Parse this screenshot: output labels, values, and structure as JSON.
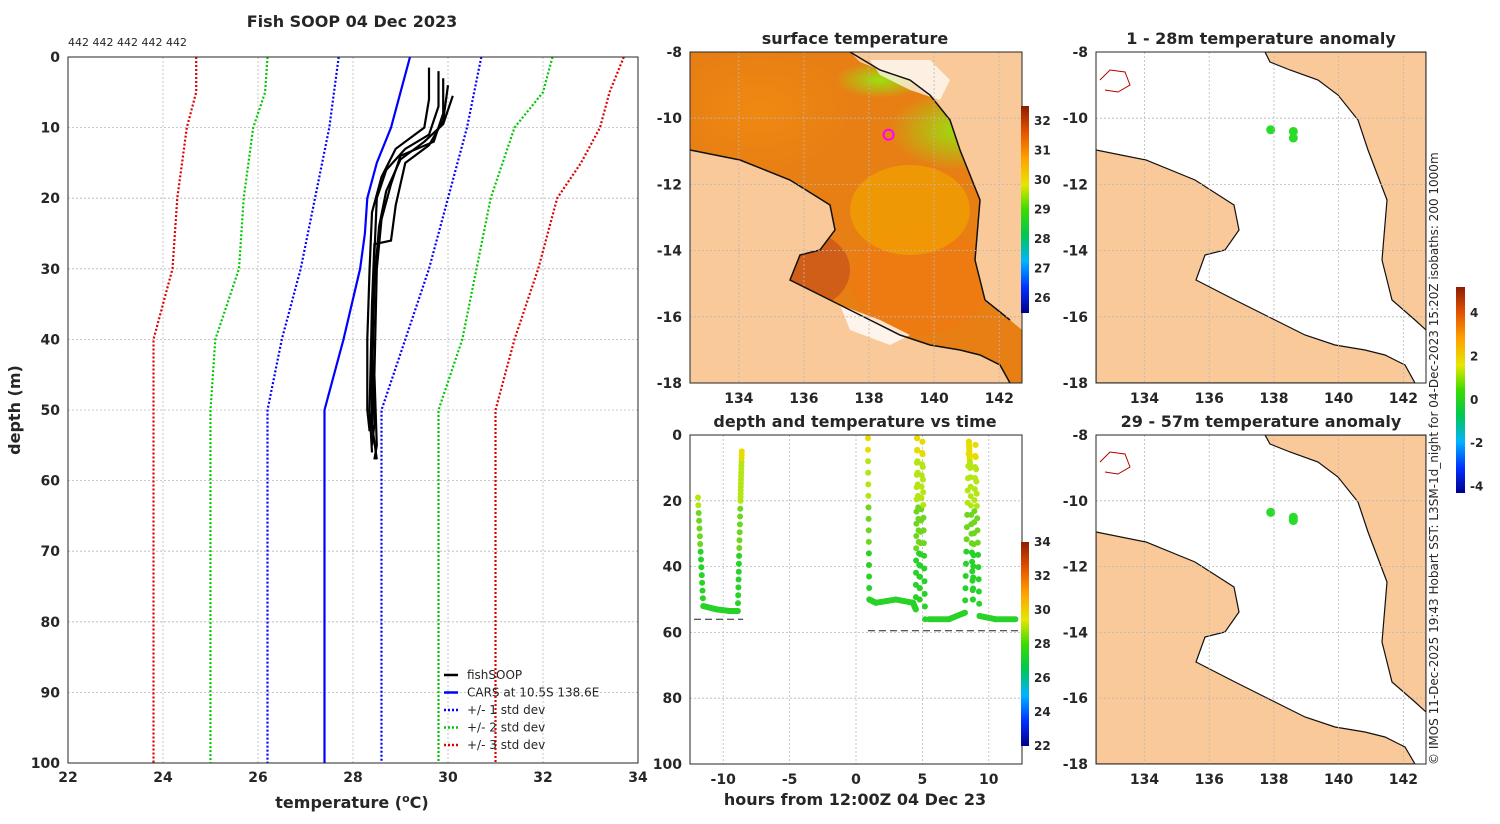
{
  "colors": {
    "land": "#f9c99a",
    "profile": "#000000",
    "cars": "#0000ff",
    "std1": "#0000ff",
    "std2": "#00c800",
    "std3": "#e00000",
    "marker": "#ff00ff"
  },
  "chart_data": [
    {
      "type": "line",
      "title": "Fish SOOP 04 Dec 2023",
      "annotation": "442 442 442 442 442",
      "xlabel": "temperature (oC)",
      "ylabel": "depth (m)",
      "xlim": [
        22,
        34
      ],
      "ylim": [
        100,
        0
      ],
      "xticks": [
        "22",
        "24",
        "26",
        "28",
        "30",
        "32",
        "34"
      ],
      "yticks": [
        "0",
        "10",
        "20",
        "30",
        "40",
        "50",
        "60",
        "70",
        "80",
        "90",
        "100"
      ],
      "legend": [
        "fishSOOP",
        "CARS at 10.5S 138.6E",
        "+/- 1 std dev",
        "+/- 2 std dev",
        "+/- 3 std dev"
      ],
      "series": [
        {
          "name": "fishSOOP",
          "style": "solid",
          "color": "#000000",
          "profiles": [
            [
              [
                29.6,
                1.5
              ],
              [
                29.6,
                6
              ],
              [
                29.5,
                10
              ],
              [
                28.9,
                13
              ],
              [
                28.6,
                17
              ],
              [
                28.4,
                22
              ],
              [
                28.35,
                30
              ],
              [
                28.3,
                40
              ],
              [
                28.3,
                50
              ],
              [
                28.35,
                53
              ]
            ],
            [
              [
                29.8,
                2
              ],
              [
                29.8,
                7
              ],
              [
                29.6,
                11
              ],
              [
                29.1,
                13
              ],
              [
                28.7,
                16
              ],
              [
                28.5,
                20
              ],
              [
                28.45,
                28
              ],
              [
                28.4,
                40
              ],
              [
                28.45,
                52
              ],
              [
                28.4,
                55
              ]
            ],
            [
              [
                29.9,
                3
              ],
              [
                29.9,
                8
              ],
              [
                29.7,
                12
              ],
              [
                29.0,
                14
              ],
              [
                28.8,
                18
              ],
              [
                28.6,
                23
              ],
              [
                28.5,
                30
              ],
              [
                28.45,
                45
              ],
              [
                28.5,
                55
              ],
              [
                28.45,
                57
              ]
            ],
            [
              [
                30.0,
                4
              ],
              [
                29.9,
                9
              ],
              [
                29.6,
                12.5
              ],
              [
                29.1,
                15
              ],
              [
                28.9,
                21
              ],
              [
                28.8,
                26
              ],
              [
                28.45,
                26.5
              ],
              [
                28.4,
                35
              ],
              [
                28.35,
                50
              ],
              [
                28.4,
                56
              ]
            ],
            [
              [
                30.1,
                5.5
              ],
              [
                29.9,
                9.5
              ],
              [
                29.5,
                12
              ],
              [
                29.0,
                14.5
              ],
              [
                28.7,
                19
              ],
              [
                28.55,
                24
              ],
              [
                28.45,
                32
              ],
              [
                28.4,
                46
              ],
              [
                28.4,
                52
              ],
              [
                28.5,
                57
              ]
            ]
          ]
        },
        {
          "name": "CARS at 10.5S 138.6E",
          "style": "solid",
          "color": "#0000ff",
          "points": [
            [
              29.2,
              0
            ],
            [
              29.0,
              5
            ],
            [
              28.8,
              10
            ],
            [
              28.5,
              15
            ],
            [
              28.3,
              20
            ],
            [
              28.25,
              25
            ],
            [
              28.15,
              30
            ],
            [
              27.8,
              40
            ],
            [
              27.4,
              50
            ],
            [
              27.4,
              60
            ],
            [
              27.4,
              100
            ]
          ]
        },
        {
          "name": "+/- 1 std dev (low)",
          "style": "dotted",
          "color": "#0000ff",
          "points": [
            [
              27.7,
              0
            ],
            [
              27.5,
              10
            ],
            [
              27.2,
              20
            ],
            [
              26.9,
              30
            ],
            [
              26.5,
              40
            ],
            [
              26.2,
              50
            ],
            [
              26.2,
              100
            ]
          ]
        },
        {
          "name": "+/- 1 std dev (high)",
          "style": "dotted",
          "color": "#0000ff",
          "points": [
            [
              30.7,
              0
            ],
            [
              30.4,
              10
            ],
            [
              30.0,
              20
            ],
            [
              29.6,
              30
            ],
            [
              29.1,
              40
            ],
            [
              28.6,
              50
            ],
            [
              28.6,
              100
            ]
          ]
        },
        {
          "name": "+/- 2 std dev (low)",
          "style": "dotted",
          "color": "#00c800",
          "points": [
            [
              26.2,
              0
            ],
            [
              26.15,
              5
            ],
            [
              25.9,
              10
            ],
            [
              25.7,
              20
            ],
            [
              25.6,
              30
            ],
            [
              25.1,
              40
            ],
            [
              25.0,
              50
            ],
            [
              25.0,
              100
            ]
          ]
        },
        {
          "name": "+/- 2 std dev (high)",
          "style": "dotted",
          "color": "#00c800",
          "points": [
            [
              32.2,
              0
            ],
            [
              32.0,
              5
            ],
            [
              31.4,
              10
            ],
            [
              30.9,
              20
            ],
            [
              30.6,
              30
            ],
            [
              30.3,
              40
            ],
            [
              29.8,
              50
            ],
            [
              29.8,
              100
            ]
          ]
        },
        {
          "name": "+/- 3 std dev (low)",
          "style": "dotted",
          "color": "#e00000",
          "points": [
            [
              24.7,
              0
            ],
            [
              24.7,
              5
            ],
            [
              24.5,
              10
            ],
            [
              24.3,
              20
            ],
            [
              24.2,
              30
            ],
            [
              23.8,
              40
            ],
            [
              23.8,
              100
            ]
          ]
        },
        {
          "name": "+/- 3 std dev (high)",
          "style": "dotted",
          "color": "#e00000",
          "points": [
            [
              33.7,
              0
            ],
            [
              33.4,
              5
            ],
            [
              33.2,
              10
            ],
            [
              32.8,
              15
            ],
            [
              32.3,
              20
            ],
            [
              31.9,
              30
            ],
            [
              31.4,
              40
            ],
            [
              31.0,
              50
            ],
            [
              31.0,
              100
            ]
          ]
        }
      ]
    },
    {
      "type": "heatmap",
      "title": "surface temperature",
      "xlim": [
        132.5,
        142.7
      ],
      "ylim": [
        -18,
        -8
      ],
      "xticks": [
        "134",
        "136",
        "138",
        "140",
        "142"
      ],
      "yticks": [
        "-8",
        "-10",
        "-12",
        "-14",
        "-16",
        "-18"
      ],
      "colorbar": {
        "min": 25.5,
        "max": 32.5,
        "ticks": [
          "26",
          "27",
          "28",
          "29",
          "30",
          "31",
          "32"
        ]
      },
      "marker": {
        "lon": 138.6,
        "lat": -10.5
      }
    },
    {
      "type": "scatter",
      "title": "depth and temperature vs time",
      "xlabel": "hours from 12:00Z 04 Dec 23",
      "xlim": [
        -12.5,
        12.5
      ],
      "ylim": [
        100,
        0
      ],
      "xticks": [
        "-10",
        "-5",
        "0",
        "5",
        "10"
      ],
      "yticks": [
        "0",
        "20",
        "40",
        "60",
        "80",
        "100"
      ],
      "colorbar": {
        "min": 22,
        "max": 34,
        "ticks": [
          "22",
          "24",
          "26",
          "28",
          "30",
          "32",
          "34"
        ]
      },
      "segments": [
        {
          "t": [
            -11.9,
            -11.5,
            -10.5,
            -9.5,
            -8.9,
            -8.7,
            -8.6
          ],
          "d": [
            19,
            52,
            53,
            53.5,
            53.5,
            20,
            5
          ]
        },
        {
          "t": [
            0.9,
            1.0,
            1.5,
            3.0,
            4.3,
            4.5,
            4.6,
            4.8,
            5.0,
            5.2
          ],
          "d": [
            1,
            50,
            51,
            50,
            51,
            53,
            1,
            50,
            2,
            56
          ]
        },
        {
          "t": [
            5.5,
            7.0,
            8.2,
            8.5,
            8.6,
            8.8,
            9.0,
            9.3,
            10.5,
            12.0
          ],
          "d": [
            56,
            56,
            54,
            2,
            10,
            50,
            3,
            55,
            56,
            56
          ]
        }
      ],
      "seafloor": [
        {
          "t": [
            -12.2,
            -8.5
          ],
          "d": 56
        },
        {
          "t": [
            0.9,
            12.5
          ],
          "d": 59.5
        }
      ]
    },
    {
      "type": "heatmap",
      "title": "1 - 28m temperature anomaly",
      "xlim": [
        132.5,
        142.7
      ],
      "ylim": [
        -18,
        -8
      ],
      "xticks": [
        "134",
        "136",
        "138",
        "140",
        "142"
      ],
      "yticks": [
        "-8",
        "-10",
        "-12",
        "-14",
        "-16",
        "-18"
      ],
      "points": [
        {
          "lon": 137.9,
          "lat": -10.35
        },
        {
          "lon": 138.6,
          "lat": -10.4
        },
        {
          "lon": 138.6,
          "lat": -10.6
        }
      ]
    },
    {
      "type": "heatmap",
      "title": "29 - 57m temperature anomaly",
      "xlim": [
        132.5,
        142.7
      ],
      "ylim": [
        -18,
        -8
      ],
      "xticks": [
        "134",
        "136",
        "138",
        "140",
        "142"
      ],
      "yticks": [
        "-8",
        "-10",
        "-12",
        "-14",
        "-16",
        "-18"
      ],
      "points": [
        {
          "lon": 137.9,
          "lat": -10.35
        },
        {
          "lon": 138.6,
          "lat": -10.5
        },
        {
          "lon": 138.6,
          "lat": -10.6
        }
      ],
      "colorbar": {
        "min": -4.3,
        "max": 5.2,
        "ticks": [
          "4",
          "2",
          "0",
          "-2",
          "-4"
        ]
      }
    }
  ],
  "credit": "© IMOS 11-Dec-2025 19:43 Hobart SST: L3SM-1d_night for 04-Dec-2023 15:20Z isobaths: 200  1000m"
}
